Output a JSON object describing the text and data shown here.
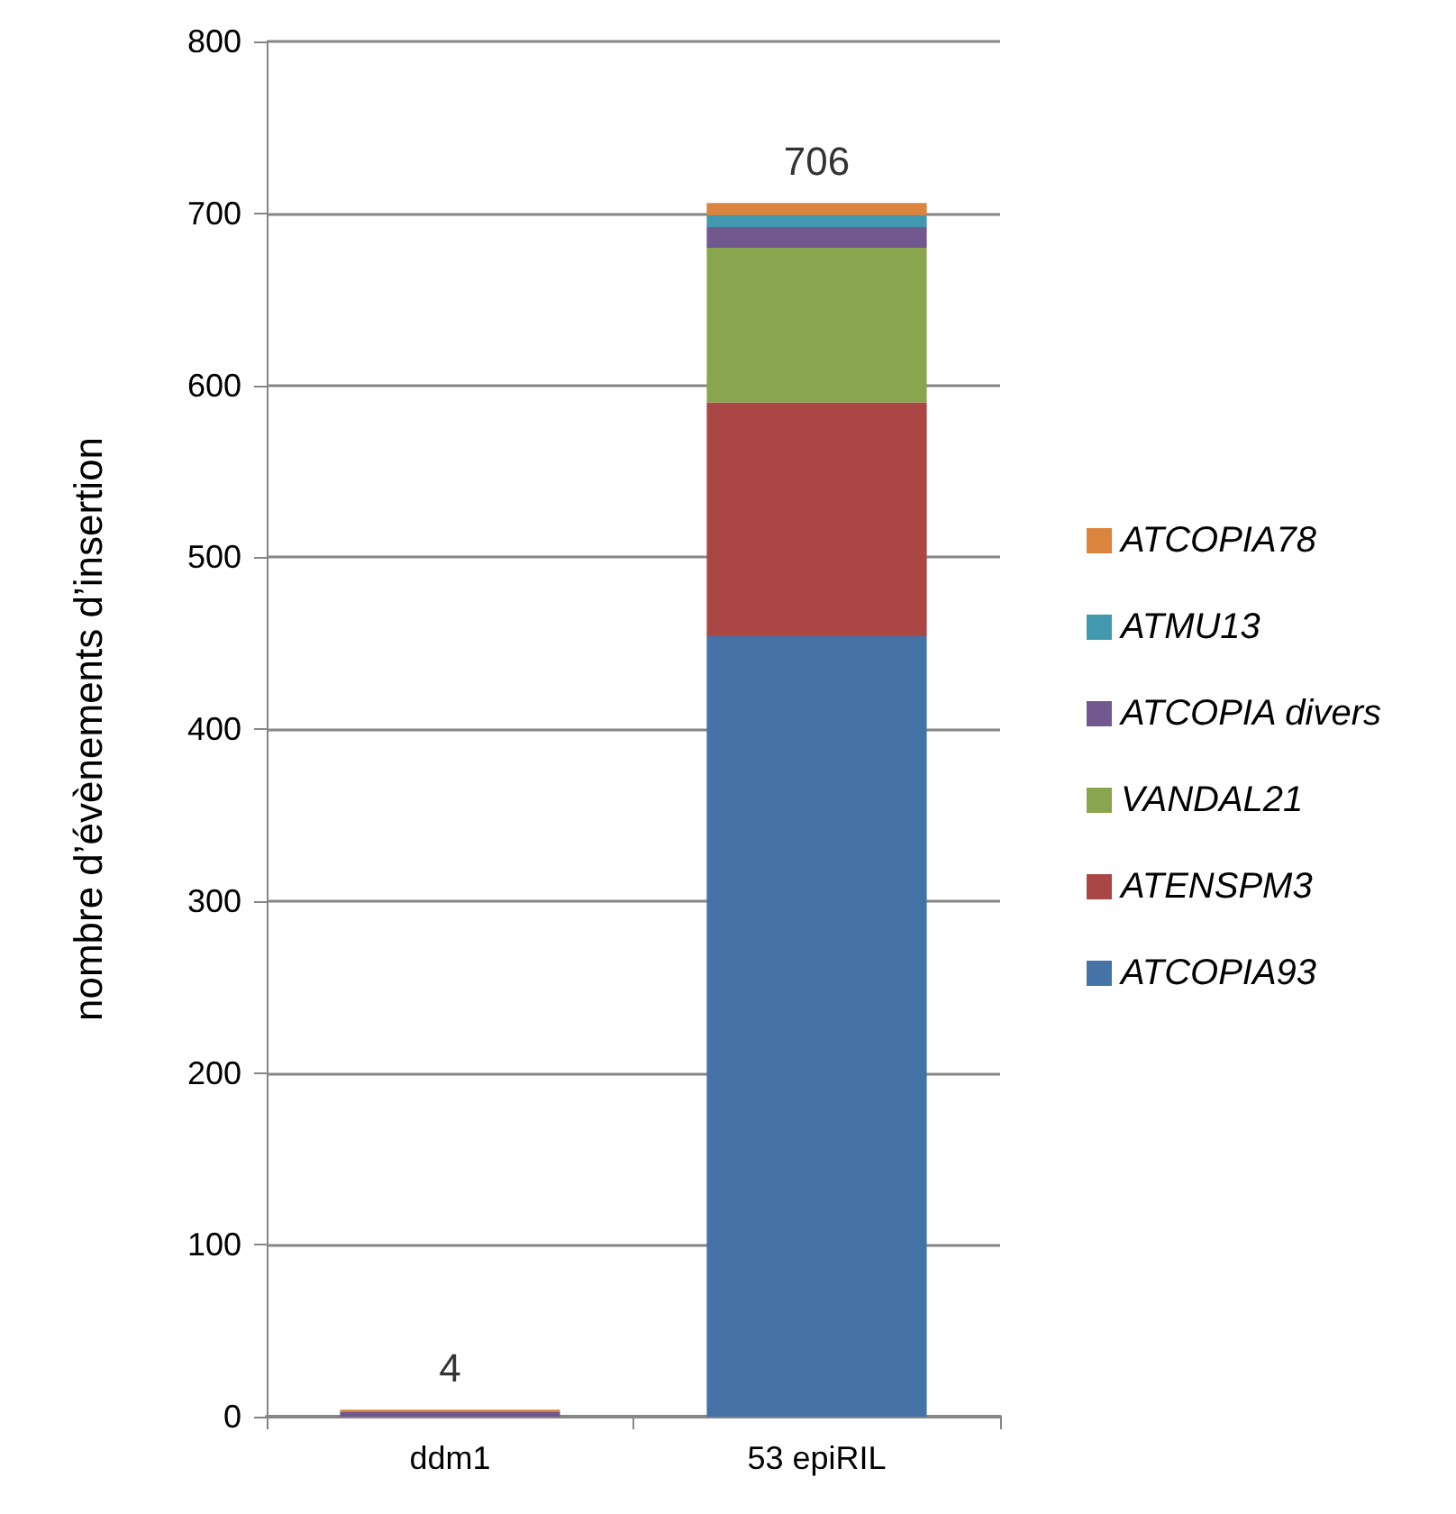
{
  "chart_data": {
    "type": "bar",
    "stacked": true,
    "ylabel": "nombre d’évènements d’insertion",
    "categories": [
      "ddm1",
      "53 epiRIL"
    ],
    "series": [
      {
        "name": "ATCOPIA93",
        "color": "#4572a7",
        "values": [
          0,
          454
        ]
      },
      {
        "name": "ATENSPM3",
        "color": "#aa4643",
        "values": [
          0,
          136
        ]
      },
      {
        "name": "VANDAL21",
        "color": "#89a54e",
        "values": [
          0,
          90
        ]
      },
      {
        "name": "ATCOPIA divers",
        "color": "#71588f",
        "values": [
          3,
          12
        ]
      },
      {
        "name": "ATMU13",
        "color": "#4198af",
        "values": [
          0,
          7
        ]
      },
      {
        "name": "ATCOPIA78",
        "color": "#db843d",
        "values": [
          1,
          7
        ]
      }
    ],
    "totals": [
      "4",
      "706"
    ],
    "ylim": [
      0,
      800
    ],
    "yticks": [
      0,
      100,
      200,
      300,
      400,
      500,
      600,
      700,
      800
    ],
    "grid": "y",
    "legend": "right"
  }
}
